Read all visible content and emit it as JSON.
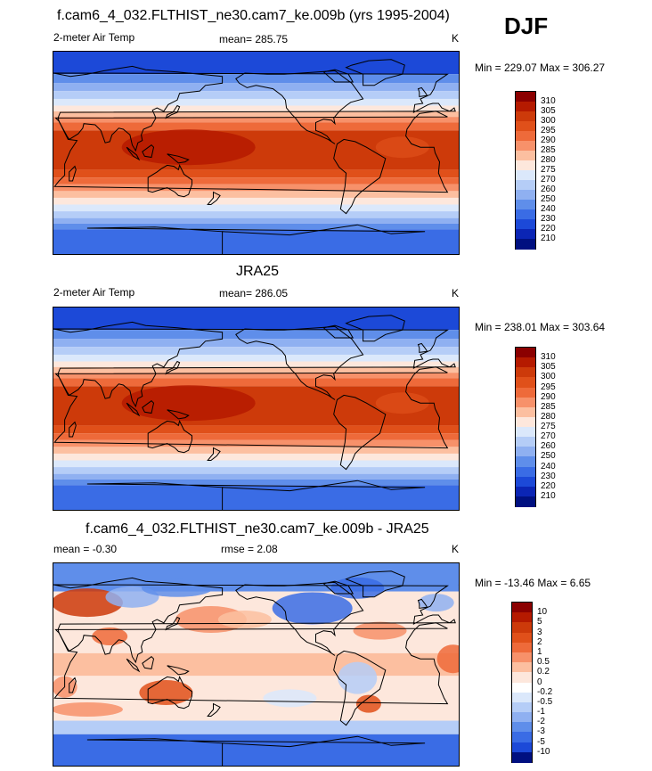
{
  "season": "DJF",
  "panels": [
    {
      "title": "f.cam6_4_032.FLTHIST_ne30.cam7_ke.009b (yrs 1995-2004)",
      "left_label": "2-meter Air Temp",
      "center_label": "mean= 285.75",
      "right_label": "K",
      "minmax": "Min = 229.07 Max = 306.27",
      "levels": [
        "310",
        "305",
        "300",
        "295",
        "290",
        "285",
        "280",
        "275",
        "270",
        "260",
        "250",
        "240",
        "230",
        "220",
        "210"
      ],
      "colors": [
        "#8b0000",
        "#b51a00",
        "#cd3a0a",
        "#e0501a",
        "#ee6a3a",
        "#f7916a",
        "#fcbfa0",
        "#fde7dc",
        "#dbe8fb",
        "#b5cdf7",
        "#8fb0f1",
        "#5f8eea",
        "#3a6ce5",
        "#1c49d8",
        "#0b25b5",
        "#001080"
      ],
      "map_type": "absolute"
    },
    {
      "title": "JRA25",
      "left_label": "2-meter Air Temp",
      "center_label": "mean= 286.05",
      "right_label": "K",
      "minmax": "Min = 238.01 Max = 303.64",
      "levels": [
        "310",
        "305",
        "300",
        "295",
        "290",
        "285",
        "280",
        "275",
        "270",
        "260",
        "250",
        "240",
        "230",
        "220",
        "210"
      ],
      "colors": [
        "#8b0000",
        "#b51a00",
        "#cd3a0a",
        "#e0501a",
        "#ee6a3a",
        "#f7916a",
        "#fcbfa0",
        "#fde7dc",
        "#dbe8fb",
        "#b5cdf7",
        "#8fb0f1",
        "#5f8eea",
        "#3a6ce5",
        "#1c49d8",
        "#0b25b5",
        "#001080"
      ],
      "map_type": "absolute"
    },
    {
      "title": "f.cam6_4_032.FLTHIST_ne30.cam7_ke.009b - JRA25",
      "left_label": "mean =  -0.30",
      "center_label": "rmse =   2.08",
      "right_label": "K",
      "minmax": "Min = -13.46 Max =   6.65",
      "levels": [
        "10",
        "5",
        "3",
        "2",
        "1",
        "0.5",
        "0.2",
        "0",
        "-0.2",
        "-0.5",
        "-1",
        "-2",
        "-3",
        "-5",
        "-10"
      ],
      "colors": [
        "#8b0000",
        "#b51a00",
        "#cd3a0a",
        "#e0501a",
        "#ee6a3a",
        "#f7916a",
        "#fcbfa0",
        "#fde7dc",
        "#ffffff",
        "#dbe8fb",
        "#b5cdf7",
        "#8fb0f1",
        "#5f8eea",
        "#3a6ce5",
        "#1c49d8",
        "#001080"
      ],
      "map_type": "difference"
    }
  ]
}
